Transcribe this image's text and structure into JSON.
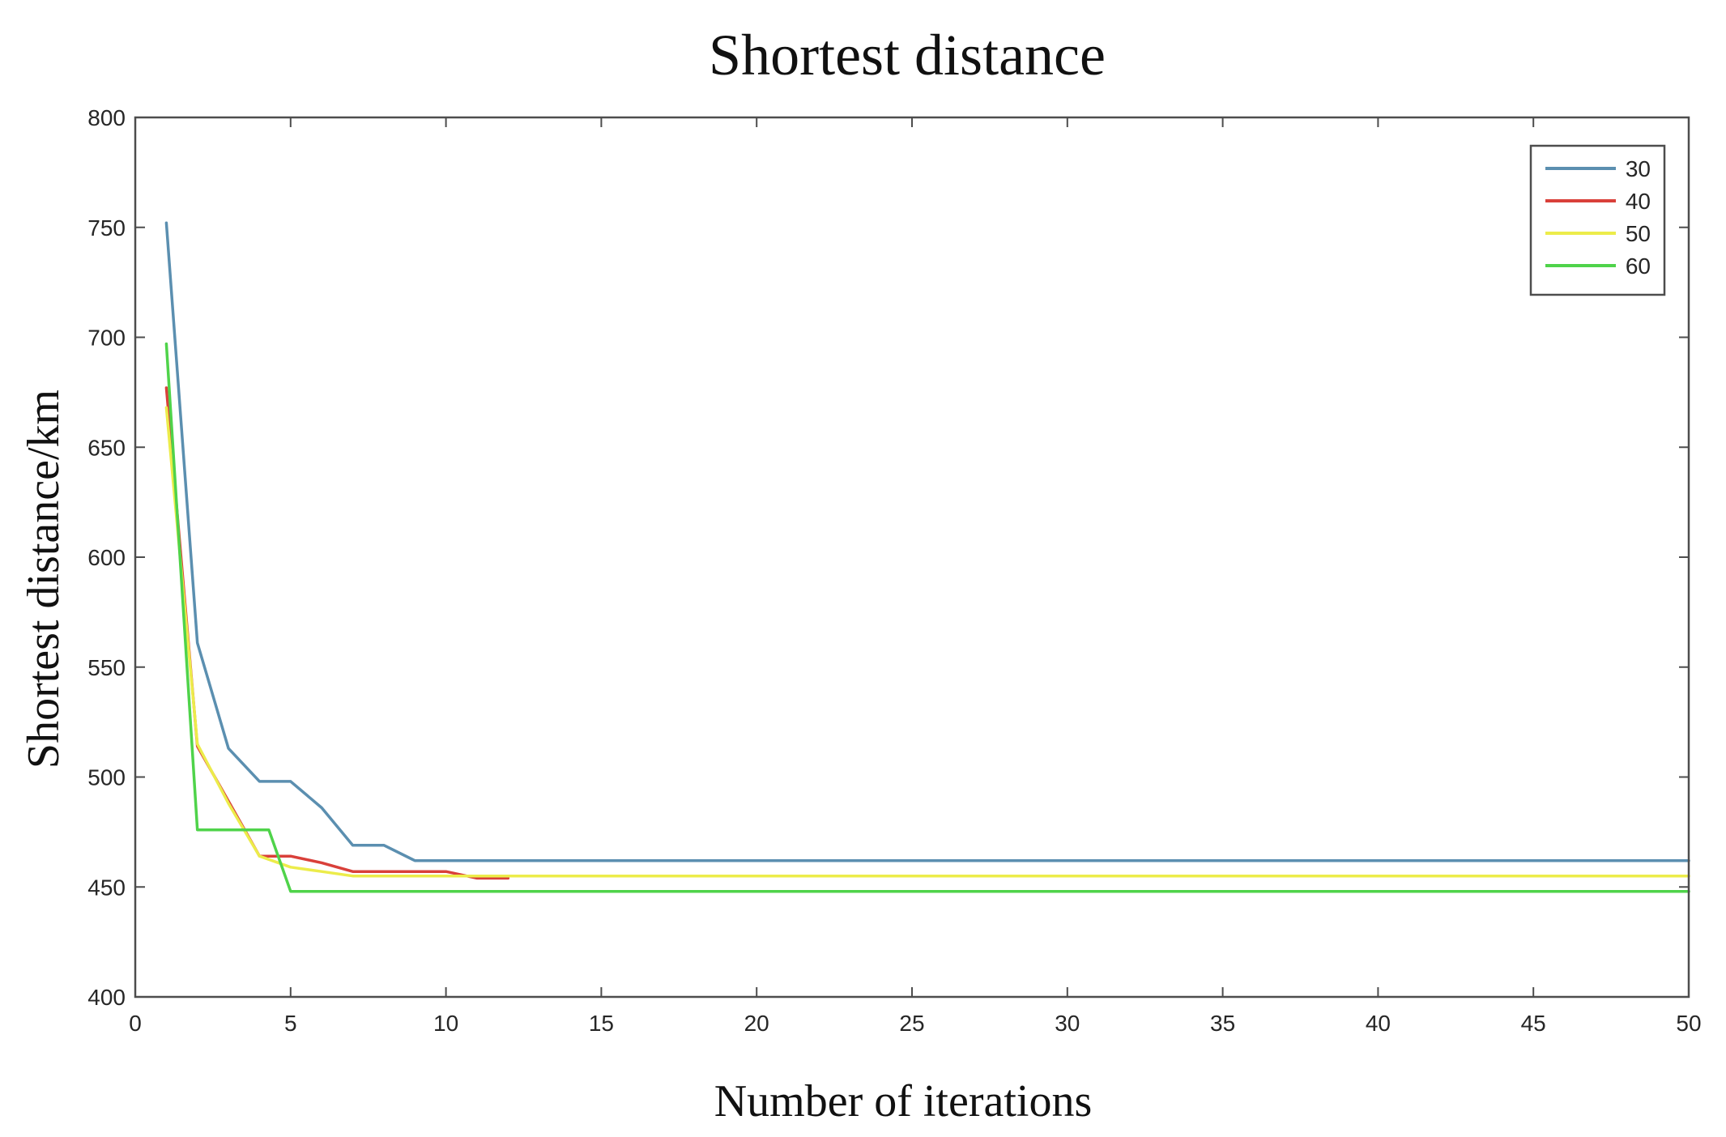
{
  "chart_data": {
    "type": "line",
    "title": "Shortest distance",
    "xlabel": "Number of iterations",
    "ylabel": "Shortest distance/km",
    "xlim": [
      0,
      50
    ],
    "ylim": [
      400,
      800
    ],
    "xticks": [
      0,
      5,
      10,
      15,
      20,
      25,
      30,
      35,
      40,
      45,
      50
    ],
    "yticks": [
      400,
      450,
      500,
      550,
      600,
      650,
      700,
      750,
      800
    ],
    "grid": false,
    "legend_position": "top-right",
    "series": [
      {
        "name": "30",
        "color": "#5b8fb0",
        "x": [
          1,
          2,
          3,
          4,
          5,
          6,
          7,
          8,
          9,
          50
        ],
        "y": [
          752,
          561,
          513,
          498,
          498,
          486,
          469,
          469,
          462,
          462
        ]
      },
      {
        "name": "40",
        "color": "#d9403a",
        "x": [
          1,
          2,
          3,
          4,
          5,
          6,
          7,
          8,
          9,
          10,
          11,
          12
        ],
        "y": [
          677,
          514,
          489,
          464,
          464,
          461,
          457,
          457,
          457,
          457,
          454,
          454
        ]
      },
      {
        "name": "50",
        "color": "#ecec4a",
        "x": [
          1,
          2,
          3,
          4,
          5,
          6,
          7,
          50
        ],
        "y": [
          668,
          515,
          488,
          464,
          459,
          457,
          455,
          455
        ]
      },
      {
        "name": "60",
        "color": "#4fd34a",
        "x": [
          1,
          2,
          3,
          4,
          4.3,
          5,
          50
        ],
        "y": [
          697,
          476,
          476,
          476,
          476,
          448,
          448
        ]
      }
    ]
  }
}
